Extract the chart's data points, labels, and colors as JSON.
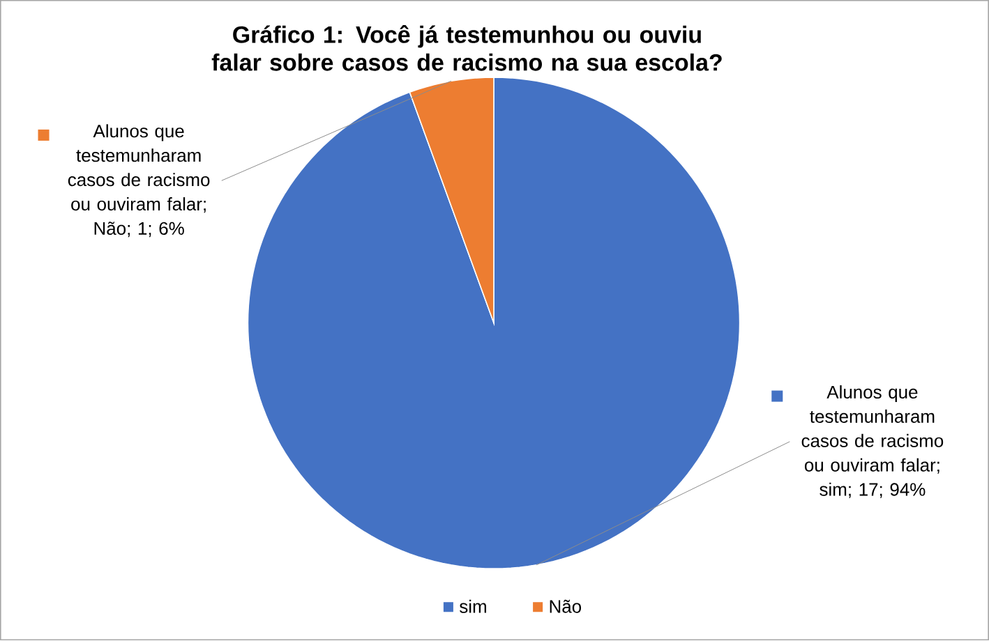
{
  "chart_data": {
    "type": "pie",
    "title": "Gráfico 1:  Você já testemunhou ou ouviu falar sobre casos de racismo na sua escola?",
    "categories": [
      "sim",
      "Não"
    ],
    "values": [
      17,
      1
    ],
    "colors": [
      "#4472c4",
      "#ed7d31"
    ],
    "value_labels": [
      "Alunos que testemunharam casos de racismo ou ouviram falar; sim; 17; 94%",
      "Alunos que testemunharam casos de racismo ou ouviram falar; Não; 1; 6%"
    ],
    "legend": "bottom"
  }
}
